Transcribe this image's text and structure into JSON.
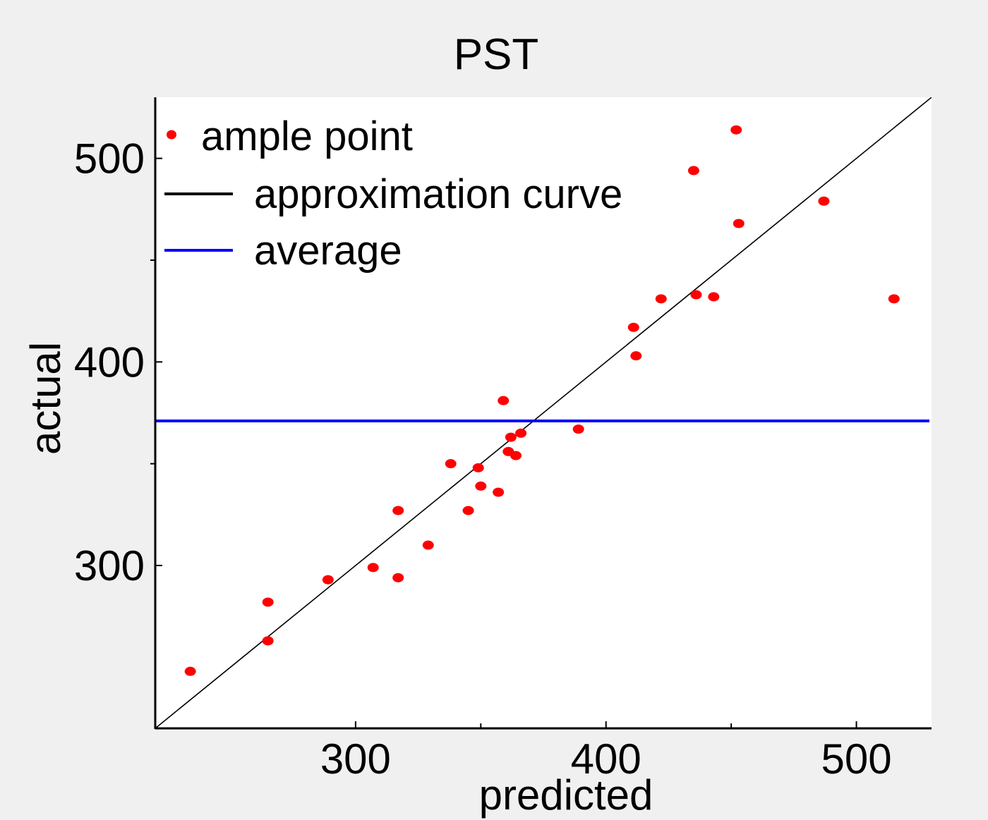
{
  "chart_data": {
    "type": "scatter",
    "title": "PST",
    "xlabel": "predicted",
    "ylabel": "actual",
    "xlim": [
      220,
      530
    ],
    "ylim": [
      220,
      530
    ],
    "x_ticks": [
      300,
      400,
      500
    ],
    "y_ticks": [
      300,
      400,
      500
    ],
    "x_minor_ticks": [
      350,
      450
    ],
    "y_minor_ticks": [
      350,
      450
    ],
    "grid": false,
    "legend_position": "top-left",
    "legend": [
      {
        "label": "ample point",
        "kind": "marker",
        "color": "#ff0000"
      },
      {
        "label": "approximation curve",
        "kind": "line",
        "color": "#000000"
      },
      {
        "label": "average",
        "kind": "line",
        "color": "#0000ff"
      }
    ],
    "series": [
      {
        "name": "ample point",
        "kind": "scatter",
        "color": "#ff0000",
        "points": [
          [
            234,
            248
          ],
          [
            265,
            282
          ],
          [
            265,
            263
          ],
          [
            289,
            293
          ],
          [
            307,
            299
          ],
          [
            317,
            327
          ],
          [
            317,
            294
          ],
          [
            329,
            310
          ],
          [
            338,
            350
          ],
          [
            345,
            327
          ],
          [
            349,
            348
          ],
          [
            350,
            339
          ],
          [
            357,
            336
          ],
          [
            359,
            381
          ],
          [
            361,
            356
          ],
          [
            362,
            363
          ],
          [
            364,
            354
          ],
          [
            366,
            365
          ],
          [
            389,
            367
          ],
          [
            411,
            417
          ],
          [
            412,
            403
          ],
          [
            422,
            431
          ],
          [
            435,
            494
          ],
          [
            436,
            433
          ],
          [
            443,
            432
          ],
          [
            452,
            514
          ],
          [
            453,
            468
          ],
          [
            487,
            479
          ],
          [
            515,
            431
          ]
        ]
      },
      {
        "name": "approximation curve",
        "kind": "line",
        "color": "#000000",
        "points": [
          [
            220,
            220
          ],
          [
            530,
            530
          ]
        ]
      },
      {
        "name": "average",
        "kind": "hline",
        "color": "#0000ff",
        "y": 371
      }
    ]
  }
}
